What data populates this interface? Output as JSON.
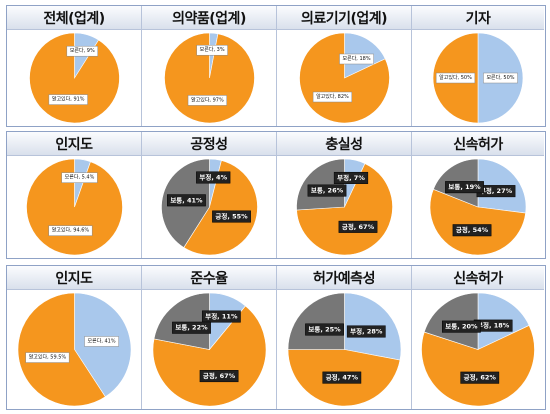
{
  "colors": {
    "positive": "#f5961e",
    "neutral": "#777777",
    "negative": "#a9c8ec",
    "label_bg": "#222222"
  },
  "chart_data": [
    {
      "type": "pie",
      "title": "전체(업계)",
      "slices": [
        {
          "label": "모른다",
          "value": 9,
          "text": "모른다, 9%",
          "color": "#a9c8ec",
          "style": "light"
        },
        {
          "label": "알고있다",
          "value": 91,
          "text": "알고있다, 91%",
          "color": "#f5961e",
          "style": "light"
        }
      ]
    },
    {
      "type": "pie",
      "title": "의약품(업계)",
      "slices": [
        {
          "label": "모른다",
          "value": 3,
          "text": "모른다, 3%",
          "color": "#a9c8ec",
          "style": "light"
        },
        {
          "label": "알고있다",
          "value": 97,
          "text": "알고있다, 97%",
          "color": "#f5961e",
          "style": "light"
        }
      ]
    },
    {
      "type": "pie",
      "title": "의료기기(업계)",
      "slices": [
        {
          "label": "모른다",
          "value": 18,
          "text": "모른다, 18%",
          "color": "#a9c8ec",
          "style": "light"
        },
        {
          "label": "알고있다",
          "value": 82,
          "text": "알고있다, 82%",
          "color": "#f5961e",
          "style": "light"
        }
      ]
    },
    {
      "type": "pie",
      "title": "기자",
      "slices": [
        {
          "label": "모른다",
          "value": 50,
          "text": "모른다, 50%",
          "color": "#a9c8ec",
          "style": "light"
        },
        {
          "label": "알고있다",
          "value": 50,
          "text": "알고있다, 50%",
          "color": "#f5961e",
          "style": "light"
        }
      ]
    },
    {
      "type": "pie",
      "title": "인지도",
      "slices": [
        {
          "label": "모른다",
          "value": 5.4,
          "text": "모른다, 5.4%",
          "color": "#a9c8ec",
          "style": "light"
        },
        {
          "label": "알고있다",
          "value": 94.6,
          "text": "알고있다, 94.6%",
          "color": "#f5961e",
          "style": "light"
        }
      ]
    },
    {
      "type": "pie",
      "title": "공정성",
      "slices": [
        {
          "label": "부정",
          "value": 4,
          "text": "부정, 4%",
          "color": "#a9c8ec",
          "style": "dark"
        },
        {
          "label": "긍정",
          "value": 55,
          "text": "긍정, 55%",
          "color": "#f5961e",
          "style": "dark"
        },
        {
          "label": "보통",
          "value": 41,
          "text": "보통, 41%",
          "color": "#777777",
          "style": "dark"
        }
      ]
    },
    {
      "type": "pie",
      "title": "충실성",
      "slices": [
        {
          "label": "부정",
          "value": 7,
          "text": "부정, 7%",
          "color": "#a9c8ec",
          "style": "dark"
        },
        {
          "label": "긍정",
          "value": 67,
          "text": "긍정, 67%",
          "color": "#f5961e",
          "style": "dark"
        },
        {
          "label": "보통",
          "value": 26,
          "text": "보통, 26%",
          "color": "#777777",
          "style": "dark"
        }
      ]
    },
    {
      "type": "pie",
      "title": "신속허가",
      "slices": [
        {
          "label": "부정",
          "value": 27,
          "text": "부정, 27%",
          "color": "#a9c8ec",
          "style": "dark"
        },
        {
          "label": "긍정",
          "value": 54,
          "text": "긍정, 54%",
          "color": "#f5961e",
          "style": "dark"
        },
        {
          "label": "보통",
          "value": 19,
          "text": "보통, 19%",
          "color": "#777777",
          "style": "dark"
        }
      ]
    },
    {
      "type": "pie",
      "title": "인지도",
      "slices": [
        {
          "label": "모른다",
          "value": 41,
          "text": "모른다, 41%",
          "color": "#a9c8ec",
          "style": "light"
        },
        {
          "label": "알고있다",
          "value": 59.5,
          "text": "알고있다, 59.5%",
          "color": "#f5961e",
          "style": "light"
        }
      ]
    },
    {
      "type": "pie",
      "title": "준수율",
      "slices": [
        {
          "label": "부정",
          "value": 11,
          "text": "부정, 11%",
          "color": "#a9c8ec",
          "style": "dark"
        },
        {
          "label": "긍정",
          "value": 67,
          "text": "긍정, 67%",
          "color": "#f5961e",
          "style": "dark"
        },
        {
          "label": "보통",
          "value": 22,
          "text": "보통, 22%",
          "color": "#777777",
          "style": "dark"
        }
      ]
    },
    {
      "type": "pie",
      "title": "허가예측성",
      "slices": [
        {
          "label": "부정",
          "value": 28,
          "text": "부정, 28%",
          "color": "#a9c8ec",
          "style": "dark"
        },
        {
          "label": "긍정",
          "value": 47,
          "text": "긍정, 47%",
          "color": "#f5961e",
          "style": "dark"
        },
        {
          "label": "보통",
          "value": 25,
          "text": "보통, 25%",
          "color": "#777777",
          "style": "dark"
        }
      ]
    },
    {
      "type": "pie",
      "title": "신속허가",
      "slices": [
        {
          "label": "부정",
          "value": 18,
          "text": "부정, 18%",
          "color": "#a9c8ec",
          "style": "dark"
        },
        {
          "label": "긍정",
          "value": 62,
          "text": "긍정, 62%",
          "color": "#f5961e",
          "style": "dark"
        },
        {
          "label": "보통",
          "value": 20,
          "text": "보통, 20%",
          "color": "#777777",
          "style": "dark"
        }
      ]
    }
  ]
}
